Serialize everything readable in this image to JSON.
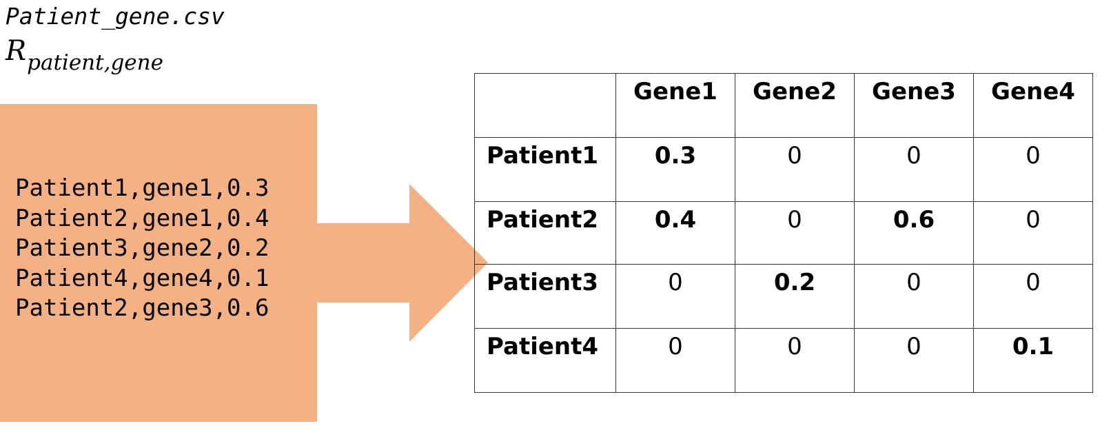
{
  "file_name": "Patient_gene.csv",
  "math_label": {
    "main": "R",
    "subscript": "patient,gene"
  },
  "csv_lines": [
    "Patient1,gene1,0.3",
    "Patient2,gene1,0.4",
    "Patient3,gene2,0.2",
    "Patient4,gene4,0.1",
    "Patient2,gene3,0.6"
  ],
  "colors": {
    "arrow_fill": "#F4B183",
    "table_border": "#333333"
  },
  "matrix": {
    "columns": [
      "Gene1",
      "Gene2",
      "Gene3",
      "Gene4"
    ],
    "rows": [
      {
        "label": "Patient1",
        "values": [
          "0.3",
          "0",
          "0",
          "0"
        ],
        "bold": [
          true,
          false,
          false,
          false
        ]
      },
      {
        "label": "Patient2",
        "values": [
          "0.4",
          "0",
          "0.6",
          "0"
        ],
        "bold": [
          true,
          false,
          true,
          false
        ]
      },
      {
        "label": "Patient3",
        "values": [
          "0",
          "0.2",
          "0",
          "0"
        ],
        "bold": [
          false,
          true,
          false,
          false
        ]
      },
      {
        "label": "Patient4",
        "values": [
          "0",
          "0",
          "0",
          "0.1"
        ],
        "bold": [
          false,
          false,
          false,
          true
        ]
      }
    ]
  }
}
